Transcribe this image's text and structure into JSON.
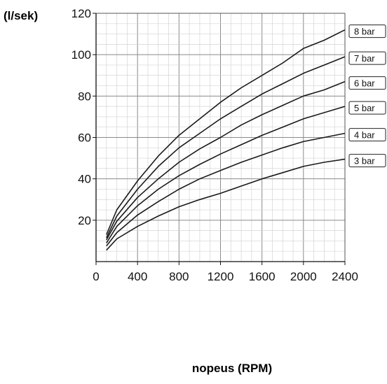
{
  "chart_data": {
    "type": "line",
    "title": "",
    "xlabel": "nopeus (RPM)",
    "ylabel": "(l/sek)",
    "xlim": [
      0,
      2400
    ],
    "ylim": [
      0,
      120
    ],
    "xticks": [
      0,
      400,
      800,
      1200,
      1600,
      2000,
      2400
    ],
    "yticks": [
      20,
      40,
      60,
      80,
      100,
      120
    ],
    "grid": true,
    "legend_position": "right, at line ends",
    "series": [
      {
        "name": "8 bar",
        "x": [
          100,
          200,
          400,
          600,
          800,
          1000,
          1200,
          1400,
          1600,
          1800,
          2000,
          2200,
          2400
        ],
        "y": [
          13,
          25,
          39,
          51,
          61,
          69,
          77,
          84,
          90,
          96,
          103,
          107,
          112
        ]
      },
      {
        "name": "7 bar",
        "x": [
          100,
          200,
          400,
          600,
          800,
          1000,
          1200,
          1400,
          1600,
          1800,
          2000,
          2200,
          2400
        ],
        "y": [
          11.5,
          22,
          35,
          46,
          55,
          62,
          69,
          75,
          81,
          86,
          91,
          95,
          99
        ]
      },
      {
        "name": "6 bar",
        "x": [
          100,
          200,
          400,
          600,
          800,
          1000,
          1200,
          1400,
          1600,
          1800,
          2000,
          2200,
          2400
        ],
        "y": [
          10.5,
          19.5,
          31,
          40,
          48,
          54.5,
          60,
          66,
          71,
          75.5,
          80,
          83,
          87
        ]
      },
      {
        "name": "5 bar",
        "x": [
          100,
          200,
          400,
          600,
          800,
          1000,
          1200,
          1400,
          1600,
          1800,
          2000,
          2200,
          2400
        ],
        "y": [
          9,
          17,
          27,
          35,
          41.5,
          47,
          52,
          56.5,
          61,
          65,
          69,
          72,
          75
        ]
      },
      {
        "name": "4 bar",
        "x": [
          100,
          200,
          400,
          600,
          800,
          1000,
          1200,
          1400,
          1600,
          1800,
          2000,
          2200,
          2400
        ],
        "y": [
          7.5,
          14,
          22.5,
          29,
          35,
          40,
          44,
          48,
          51.5,
          55,
          58,
          60,
          62
        ]
      },
      {
        "name": "3 bar",
        "x": [
          100,
          200,
          400,
          600,
          800,
          1000,
          1200,
          1400,
          1600,
          1800,
          2000,
          2200,
          2400
        ],
        "y": [
          5.5,
          11,
          17,
          22,
          26.5,
          30,
          33,
          36.5,
          40,
          43,
          46,
          48,
          49.5
        ]
      }
    ]
  }
}
